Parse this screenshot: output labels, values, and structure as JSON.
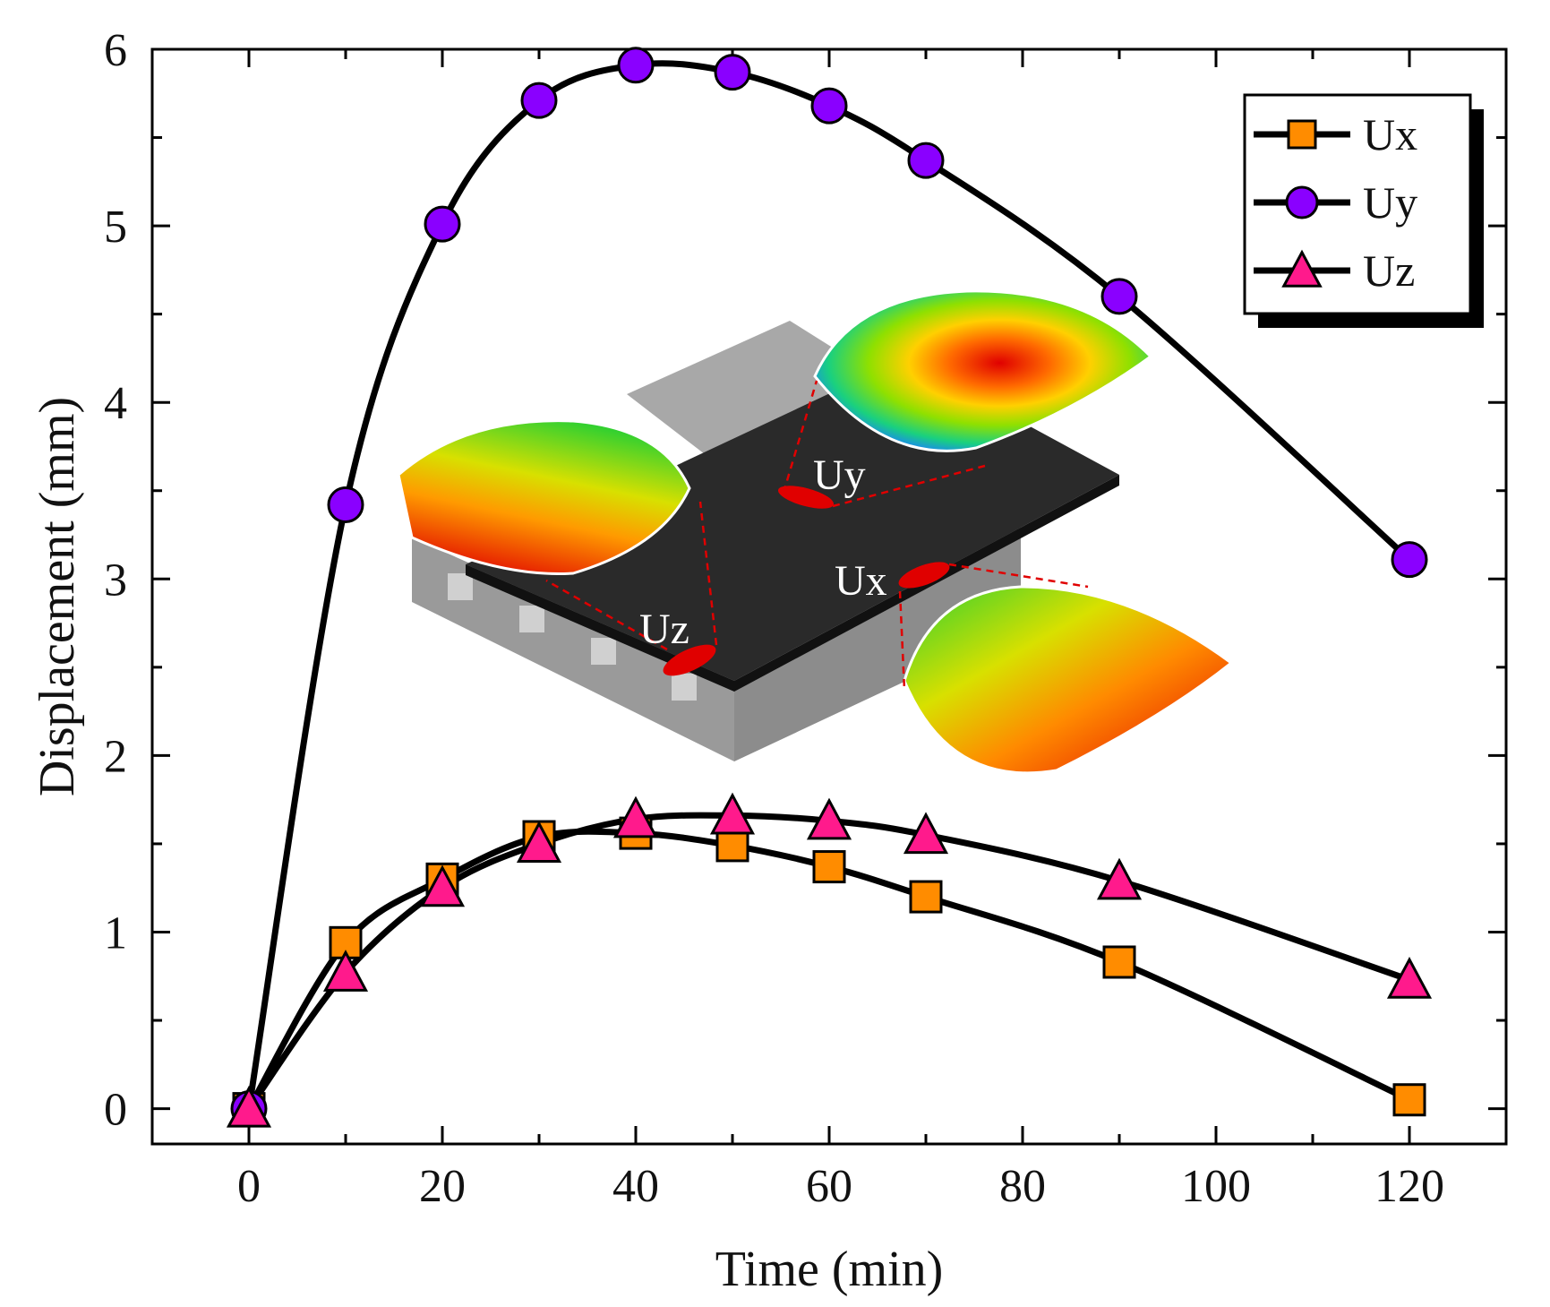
{
  "chart_data": {
    "type": "line",
    "title": "",
    "xlabel": "Time (min)",
    "ylabel": "Displacement (mm)",
    "xlim": [
      -10,
      130
    ],
    "ylim": [
      -0.2,
      6
    ],
    "xticks": [
      0,
      20,
      40,
      60,
      80,
      100,
      120
    ],
    "yticks": [
      0,
      1,
      2,
      3,
      4,
      5,
      6
    ],
    "grid": false,
    "legend_position": "top-right",
    "x": [
      0,
      10,
      20,
      30,
      40,
      50,
      60,
      70,
      90,
      120
    ],
    "series": [
      {
        "name": "Ux",
        "marker": "square",
        "color": "#ff8c00",
        "values": [
          0,
          0.94,
          1.3,
          1.54,
          1.56,
          1.49,
          1.37,
          1.2,
          0.83,
          0.05
        ]
      },
      {
        "name": "Uy",
        "marker": "circle",
        "color": "#8a00ff",
        "values": [
          0,
          3.42,
          5.01,
          5.71,
          5.91,
          5.87,
          5.68,
          5.37,
          4.6,
          3.11
        ]
      },
      {
        "name": "Uz",
        "marker": "triangle",
        "color": "#ff1a8c",
        "values": [
          0,
          0.77,
          1.25,
          1.5,
          1.64,
          1.66,
          1.63,
          1.55,
          1.29,
          0.73
        ]
      }
    ],
    "annotations": [
      "Uy",
      "Ux",
      "Uz"
    ]
  },
  "colors": {
    "line": "#000000",
    "slab": "#2a2a2a",
    "girder": "#9a9a9a",
    "highlight": "#e00000"
  }
}
